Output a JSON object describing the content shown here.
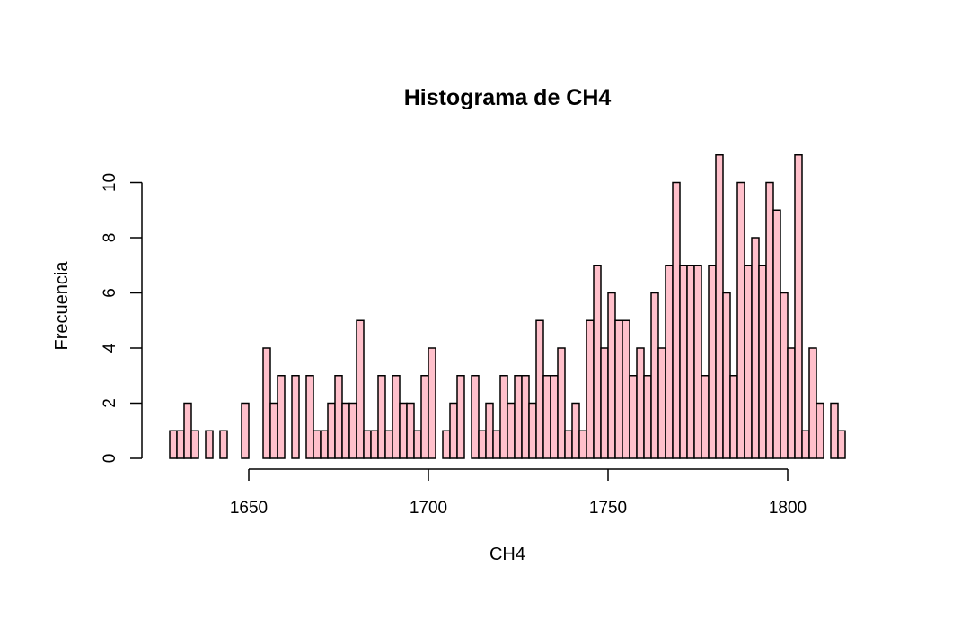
{
  "chart_data": {
    "type": "bar",
    "subtype": "histogram",
    "title": "Histograma de CH4",
    "xlabel": "CH4",
    "ylabel": "Frecuencia",
    "bin_width": 2,
    "bin_start": 1628,
    "bin_end": 1816,
    "xlim": [
      1628,
      1816
    ],
    "ylim": [
      0,
      11
    ],
    "x_ticks": [
      1650,
      1700,
      1750,
      1800
    ],
    "y_ticks": [
      0,
      2,
      4,
      6,
      8,
      10
    ],
    "bar_color": "#ffc0cb",
    "edge_color": "#000000",
    "grid": false,
    "counts": [
      1,
      1,
      2,
      1,
      0,
      1,
      0,
      1,
      0,
      0,
      2,
      0,
      0,
      4,
      2,
      3,
      0,
      3,
      0,
      3,
      1,
      1,
      2,
      3,
      2,
      2,
      5,
      1,
      1,
      3,
      1,
      3,
      2,
      2,
      1,
      3,
      4,
      0,
      1,
      2,
      3,
      0,
      3,
      1,
      2,
      1,
      3,
      2,
      3,
      3,
      2,
      5,
      3,
      3,
      4,
      1,
      2,
      1,
      5,
      7,
      4,
      6,
      5,
      5,
      3,
      4,
      3,
      6,
      4,
      7,
      10,
      7,
      7,
      7,
      3,
      7,
      11,
      6,
      3,
      10,
      7,
      8,
      7,
      10,
      9,
      6,
      4,
      11,
      1,
      4,
      2,
      0,
      2,
      1
    ]
  }
}
